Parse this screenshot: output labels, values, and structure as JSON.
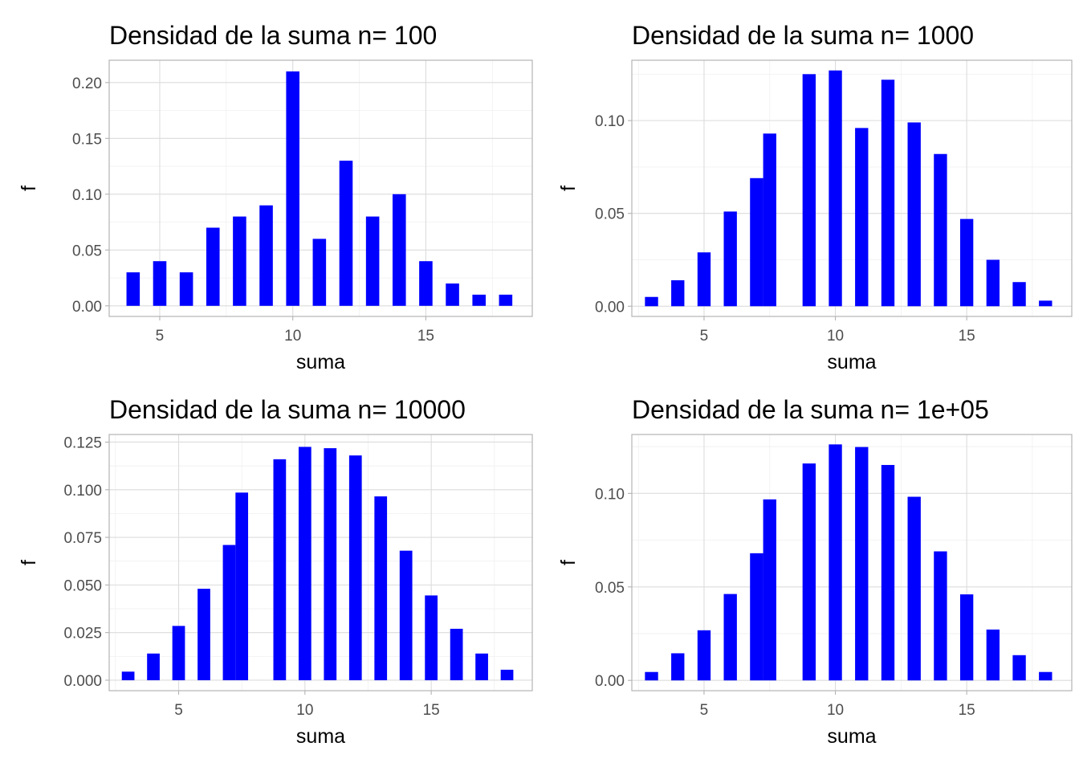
{
  "chart_data": [
    {
      "type": "bar",
      "title": "Densidad de la suma n= 100",
      "xlabel": "suma",
      "ylabel": "f",
      "xlim": [
        3.1,
        19.0
      ],
      "ylim": [
        -0.0095,
        0.2
      ],
      "y_padding_top": 0.02,
      "xticks": [
        5,
        10,
        15
      ],
      "yticks": [
        0.0,
        0.05,
        0.1,
        0.15,
        0.2
      ],
      "ytick_labels": [
        "0.00",
        "0.05",
        "0.10",
        "0.15",
        "0.20"
      ],
      "bar_color": "#0000ff",
      "bar_width": 0.5,
      "grid": true,
      "x": [
        4,
        5,
        6,
        7,
        8,
        9,
        10,
        11,
        12,
        13,
        14,
        15,
        16,
        17,
        18
      ],
      "values": [
        0.03,
        0.04,
        0.03,
        0.07,
        0.08,
        0.09,
        0.21,
        0.06,
        0.13,
        0.08,
        0.1,
        0.04,
        0.02,
        0.01,
        0.01
      ]
    },
    {
      "type": "bar",
      "title": "Densidad de la suma n= 1000",
      "xlabel": "suma",
      "ylabel": "f",
      "xlim": [
        2.25,
        19.0
      ],
      "ylim": [
        -0.0055,
        0.1325
      ],
      "xticks": [
        5,
        10,
        15
      ],
      "yticks": [
        0.0,
        0.05,
        0.1
      ],
      "ytick_labels": [
        "0.00",
        "0.05",
        "0.10"
      ],
      "bar_color": "#0000ff",
      "bar_width": 0.5,
      "grid": true,
      "x": [
        3,
        4,
        5,
        6,
        7,
        7.5,
        9,
        10,
        11,
        12,
        13,
        14,
        15,
        16,
        17,
        18
      ],
      "values": [
        0.005,
        0.014,
        0.029,
        0.051,
        0.069,
        0.093,
        0.125,
        0.127,
        0.096,
        0.122,
        0.099,
        0.082,
        0.047,
        0.025,
        0.013,
        0.003
      ]
    },
    {
      "type": "bar",
      "title": "Densidad de la suma n= 10000",
      "xlabel": "suma",
      "ylabel": "f",
      "xlim": [
        2.25,
        19.0
      ],
      "ylim": [
        -0.0055,
        0.129
      ],
      "xticks": [
        5,
        10,
        15
      ],
      "yticks": [
        0.0,
        0.025,
        0.05,
        0.075,
        0.1,
        0.125
      ],
      "ytick_labels": [
        "0.000",
        "0.025",
        "0.050",
        "0.075",
        "0.100",
        "0.125"
      ],
      "bar_color": "#0000ff",
      "bar_width": 0.5,
      "grid": true,
      "x": [
        3,
        4,
        5,
        6,
        7,
        7.5,
        9,
        10,
        11,
        12,
        13,
        14,
        15,
        16,
        17,
        18
      ],
      "values": [
        0.0045,
        0.014,
        0.0285,
        0.048,
        0.071,
        0.0985,
        0.116,
        0.1225,
        0.1218,
        0.118,
        0.0965,
        0.068,
        0.0445,
        0.027,
        0.014,
        0.0055
      ]
    },
    {
      "type": "bar",
      "title": "Densidad de la suma n= 1e+05",
      "xlabel": "suma",
      "ylabel": "f",
      "xlim": [
        2.25,
        19.0
      ],
      "ylim": [
        -0.0055,
        0.1315
      ],
      "xticks": [
        5,
        10,
        15
      ],
      "yticks": [
        0.0,
        0.05,
        0.1
      ],
      "ytick_labels": [
        "0.00",
        "0.05",
        "0.10"
      ],
      "bar_color": "#0000ff",
      "bar_width": 0.5,
      "grid": true,
      "x": [
        3,
        4,
        5,
        6,
        7,
        7.5,
        9,
        10,
        11,
        12,
        13,
        14,
        15,
        16,
        17,
        18
      ],
      "values": [
        0.0045,
        0.0145,
        0.0268,
        0.0462,
        0.068,
        0.0968,
        0.116,
        0.1262,
        0.1248,
        0.1152,
        0.0982,
        0.069,
        0.046,
        0.0272,
        0.0135,
        0.0045
      ]
    }
  ]
}
